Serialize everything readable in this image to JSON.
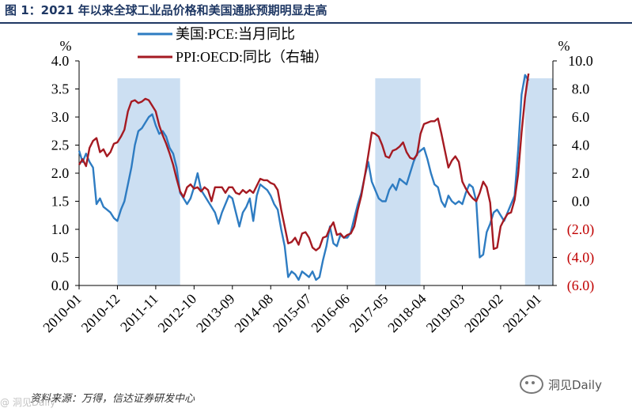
{
  "title": "图 1：2021 年以来全球工业品价格和美国通胀预期明显走高",
  "source": "资料来源：万得，信达证券研发中心",
  "watermark": "洞见Daily",
  "watermark_left": "@ 洞见Daily",
  "colors": {
    "pce": "#2e7cc2",
    "ppi": "#a51a22",
    "shade": "#ccdff2",
    "title": "#1f3864",
    "neg": "#c00000"
  },
  "chart_data": {
    "type": "line",
    "left_axis": {
      "unit": "%",
      "ylim": [
        0,
        4
      ],
      "ticks": [
        "0.0",
        "0.5",
        "1.0",
        "1.5",
        "2.0",
        "2.5",
        "3.0",
        "3.5",
        "4.0"
      ],
      "tick_values": [
        0,
        0.5,
        1,
        1.5,
        2,
        2.5,
        3,
        3.5,
        4
      ]
    },
    "right_axis": {
      "unit": "%",
      "ylim": [
        -6,
        10
      ],
      "ticks": [
        "(6.0)",
        "(4.0)",
        "(2.0)",
        "0.0",
        "2.0",
        "4.0",
        "6.0",
        "8.0",
        "10.0"
      ],
      "tick_values": [
        -6,
        -4,
        -2,
        0,
        2,
        4,
        6,
        8,
        10
      ]
    },
    "x_ticks": [
      "2010-01",
      "2010-12",
      "2011-11",
      "2012-10",
      "2013-09",
      "2014-08",
      "2015-07",
      "2016-06",
      "2017-05",
      "2018-04",
      "2019-03",
      "2020-02",
      "2021-01"
    ],
    "x_tick_index": [
      0,
      11,
      22,
      33,
      44,
      55,
      66,
      77,
      88,
      99,
      110,
      121,
      132
    ],
    "x_range": [
      0,
      136
    ],
    "shaded_ranges": [
      [
        11,
        29
      ],
      [
        85,
        98
      ],
      [
        128,
        136
      ]
    ],
    "series": [
      {
        "name": "美国:PCE:当月同比",
        "axis": "left",
        "points": [
          [
            0,
            2.4
          ],
          [
            1,
            2.2
          ],
          [
            2,
            2.35
          ],
          [
            3,
            2.2
          ],
          [
            4,
            2.1
          ],
          [
            5,
            1.45
          ],
          [
            6,
            1.55
          ],
          [
            7,
            1.4
          ],
          [
            8,
            1.35
          ],
          [
            9,
            1.3
          ],
          [
            10,
            1.2
          ],
          [
            11,
            1.15
          ],
          [
            12,
            1.35
          ],
          [
            13,
            1.5
          ],
          [
            14,
            1.8
          ],
          [
            15,
            2.1
          ],
          [
            16,
            2.5
          ],
          [
            17,
            2.75
          ],
          [
            18,
            2.8
          ],
          [
            19,
            2.9
          ],
          [
            20,
            3.0
          ],
          [
            21,
            3.05
          ],
          [
            22,
            2.85
          ],
          [
            23,
            2.7
          ],
          [
            24,
            2.75
          ],
          [
            25,
            2.65
          ],
          [
            26,
            2.45
          ],
          [
            27,
            2.35
          ],
          [
            28,
            2.1
          ],
          [
            29,
            1.65
          ],
          [
            30,
            1.55
          ],
          [
            31,
            1.45
          ],
          [
            32,
            1.55
          ],
          [
            33,
            1.75
          ],
          [
            34,
            2.0
          ],
          [
            35,
            1.7
          ],
          [
            36,
            1.6
          ],
          [
            37,
            1.5
          ],
          [
            38,
            1.4
          ],
          [
            39,
            1.3
          ],
          [
            40,
            1.1
          ],
          [
            41,
            1.3
          ],
          [
            42,
            1.45
          ],
          [
            43,
            1.6
          ],
          [
            44,
            1.55
          ],
          [
            45,
            1.3
          ],
          [
            46,
            1.05
          ],
          [
            47,
            1.3
          ],
          [
            48,
            1.4
          ],
          [
            49,
            1.55
          ],
          [
            50,
            1.15
          ],
          [
            51,
            1.6
          ],
          [
            52,
            1.8
          ],
          [
            53,
            1.75
          ],
          [
            54,
            1.7
          ],
          [
            55,
            1.6
          ],
          [
            56,
            1.45
          ],
          [
            57,
            1.35
          ],
          [
            58,
            1.0
          ],
          [
            59,
            0.7
          ],
          [
            60,
            0.15
          ],
          [
            61,
            0.25
          ],
          [
            62,
            0.2
          ],
          [
            63,
            0.1
          ],
          [
            64,
            0.25
          ],
          [
            65,
            0.2
          ],
          [
            66,
            0.15
          ],
          [
            67,
            0.25
          ],
          [
            68,
            0.1
          ],
          [
            69,
            0.15
          ],
          [
            70,
            0.45
          ],
          [
            71,
            0.7
          ],
          [
            72,
            1.05
          ],
          [
            73,
            0.75
          ],
          [
            74,
            0.7
          ],
          [
            75,
            0.9
          ],
          [
            76,
            0.85
          ],
          [
            77,
            0.85
          ],
          [
            78,
            0.95
          ],
          [
            79,
            1.2
          ],
          [
            80,
            1.45
          ],
          [
            81,
            1.65
          ],
          [
            82,
            1.95
          ],
          [
            83,
            2.2
          ],
          [
            84,
            1.85
          ],
          [
            85,
            1.7
          ],
          [
            86,
            1.55
          ],
          [
            87,
            1.5
          ],
          [
            88,
            1.5
          ],
          [
            89,
            1.7
          ],
          [
            90,
            1.8
          ],
          [
            91,
            1.7
          ],
          [
            92,
            1.9
          ],
          [
            93,
            1.85
          ],
          [
            94,
            1.8
          ],
          [
            95,
            2.0
          ],
          [
            96,
            2.2
          ],
          [
            97,
            2.35
          ],
          [
            98,
            2.4
          ],
          [
            99,
            2.45
          ],
          [
            100,
            2.25
          ],
          [
            101,
            2.0
          ],
          [
            102,
            1.8
          ],
          [
            103,
            1.75
          ],
          [
            104,
            1.5
          ],
          [
            105,
            1.4
          ],
          [
            106,
            1.6
          ],
          [
            107,
            1.5
          ],
          [
            108,
            1.45
          ],
          [
            109,
            1.5
          ],
          [
            110,
            1.45
          ],
          [
            111,
            1.65
          ],
          [
            112,
            1.8
          ],
          [
            113,
            1.75
          ],
          [
            114,
            1.5
          ],
          [
            115,
            0.5
          ],
          [
            116,
            0.55
          ],
          [
            117,
            0.95
          ],
          [
            118,
            1.1
          ],
          [
            119,
            1.3
          ],
          [
            120,
            1.35
          ],
          [
            121,
            1.25
          ],
          [
            122,
            1.15
          ],
          [
            123,
            1.3
          ],
          [
            124,
            1.45
          ],
          [
            125,
            1.6
          ],
          [
            126,
            2.4
          ],
          [
            127,
            3.4
          ],
          [
            128,
            3.75
          ],
          [
            129,
            3.65
          ]
        ]
      },
      {
        "name": "PPI:OECD:同比（右轴）",
        "axis": "right",
        "points": [
          [
            0,
            2.6
          ],
          [
            1,
            3.0
          ],
          [
            2,
            2.5
          ],
          [
            3,
            3.8
          ],
          [
            4,
            4.3
          ],
          [
            5,
            4.5
          ],
          [
            6,
            3.5
          ],
          [
            7,
            3.7
          ],
          [
            8,
            3.2
          ],
          [
            9,
            3.5
          ],
          [
            10,
            4.1
          ],
          [
            11,
            4.2
          ],
          [
            12,
            4.6
          ],
          [
            13,
            5.1
          ],
          [
            14,
            6.4
          ],
          [
            15,
            7.1
          ],
          [
            16,
            7.2
          ],
          [
            17,
            7.0
          ],
          [
            18,
            7.1
          ],
          [
            19,
            7.3
          ],
          [
            20,
            7.2
          ],
          [
            21,
            6.8
          ],
          [
            22,
            6.4
          ],
          [
            23,
            5.4
          ],
          [
            24,
            4.7
          ],
          [
            25,
            4.1
          ],
          [
            26,
            3.4
          ],
          [
            27,
            2.6
          ],
          [
            28,
            1.6
          ],
          [
            29,
            0.7
          ],
          [
            30,
            0.3
          ],
          [
            31,
            1.0
          ],
          [
            32,
            1.2
          ],
          [
            33,
            0.9
          ],
          [
            34,
            1.0
          ],
          [
            35,
            0.7
          ],
          [
            36,
            1.0
          ],
          [
            37,
            0.8
          ],
          [
            38,
            0.0
          ],
          [
            39,
            1.0
          ],
          [
            40,
            1.0
          ],
          [
            41,
            1.0
          ],
          [
            42,
            0.6
          ],
          [
            43,
            1.0
          ],
          [
            44,
            1.0
          ],
          [
            45,
            0.6
          ],
          [
            46,
            0.5
          ],
          [
            47,
            0.8
          ],
          [
            48,
            0.6
          ],
          [
            49,
            0.8
          ],
          [
            50,
            0.6
          ],
          [
            51,
            1.1
          ],
          [
            52,
            1.6
          ],
          [
            53,
            1.5
          ],
          [
            54,
            1.5
          ],
          [
            55,
            1.3
          ],
          [
            56,
            1.2
          ],
          [
            57,
            0.8
          ],
          [
            58,
            -0.6
          ],
          [
            59,
            -1.8
          ],
          [
            60,
            -3.0
          ],
          [
            61,
            -2.9
          ],
          [
            62,
            -2.6
          ],
          [
            63,
            -3.1
          ],
          [
            64,
            -2.3
          ],
          [
            65,
            -2.2
          ],
          [
            66,
            -2.6
          ],
          [
            67,
            -3.3
          ],
          [
            68,
            -3.5
          ],
          [
            69,
            -3.3
          ],
          [
            70,
            -2.6
          ],
          [
            71,
            -2.5
          ],
          [
            72,
            -1.9
          ],
          [
            73,
            -1.5
          ],
          [
            74,
            -2.4
          ],
          [
            75,
            -2.3
          ],
          [
            76,
            -2.6
          ],
          [
            77,
            -2.4
          ],
          [
            78,
            -2.3
          ],
          [
            79,
            -1.8
          ],
          [
            80,
            -0.6
          ],
          [
            81,
            0.4
          ],
          [
            82,
            1.8
          ],
          [
            83,
            3.3
          ],
          [
            84,
            4.9
          ],
          [
            85,
            4.8
          ],
          [
            86,
            4.6
          ],
          [
            87,
            4.0
          ],
          [
            88,
            3.2
          ],
          [
            89,
            3.1
          ],
          [
            90,
            3.6
          ],
          [
            91,
            3.7
          ],
          [
            92,
            3.9
          ],
          [
            93,
            4.2
          ],
          [
            94,
            3.5
          ],
          [
            95,
            3.1
          ],
          [
            96,
            3.0
          ],
          [
            97,
            3.3
          ],
          [
            98,
            4.8
          ],
          [
            99,
            5.5
          ],
          [
            100,
            5.6
          ],
          [
            101,
            5.7
          ],
          [
            102,
            5.7
          ],
          [
            103,
            5.9
          ],
          [
            104,
            4.8
          ],
          [
            105,
            3.6
          ],
          [
            106,
            2.4
          ],
          [
            107,
            2.9
          ],
          [
            108,
            3.2
          ],
          [
            109,
            2.8
          ],
          [
            110,
            1.4
          ],
          [
            111,
            0.9
          ],
          [
            112,
            0.5
          ],
          [
            113,
            0.2
          ],
          [
            114,
            0.0
          ],
          [
            115,
            0.6
          ],
          [
            116,
            1.4
          ],
          [
            117,
            1.0
          ],
          [
            118,
            -0.1
          ],
          [
            119,
            -3.4
          ],
          [
            120,
            -3.3
          ],
          [
            121,
            -1.8
          ],
          [
            122,
            -1.3
          ],
          [
            123,
            -0.9
          ],
          [
            124,
            -0.8
          ],
          [
            125,
            0.1
          ],
          [
            126,
            1.9
          ],
          [
            127,
            4.9
          ],
          [
            128,
            7.4
          ],
          [
            129,
            9.1
          ]
        ]
      }
    ]
  }
}
